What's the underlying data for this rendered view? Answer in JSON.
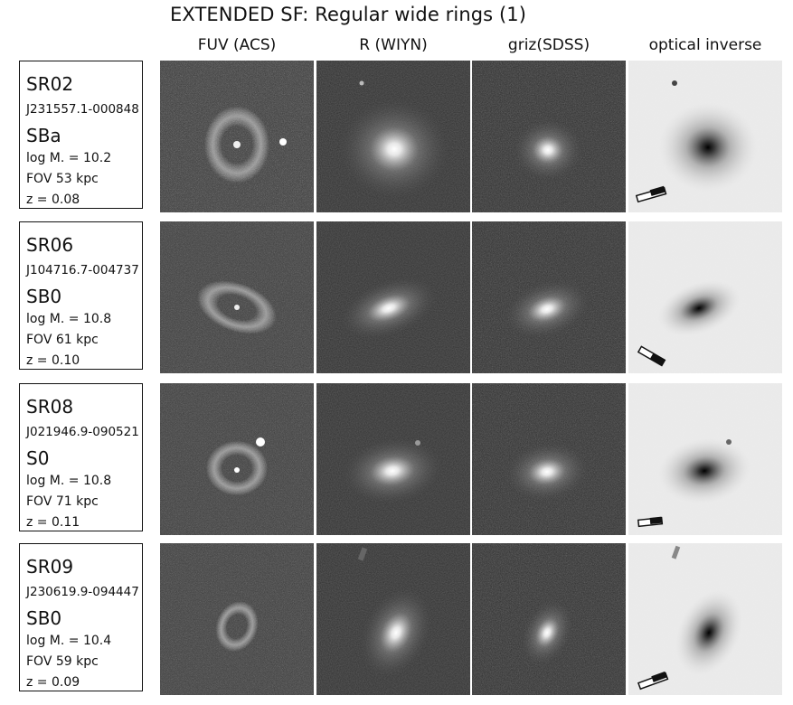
{
  "figure": {
    "title": "EXTENDED SF: Regular wide rings (1)",
    "columns": [
      "FUV (ACS)",
      "R (WIYN)",
      "griz(SDSS)",
      "optical inverse"
    ]
  },
  "rows": [
    {
      "name": "SR02",
      "id": "J231557.1-000848",
      "type": "SBa",
      "logm": "log M. = 10.2",
      "fov": "FOV 53 kpc",
      "z": "z = 0.08"
    },
    {
      "name": "SR06",
      "id": "J104716.7-004737",
      "type": "SB0",
      "logm": "log M. = 10.8",
      "fov": "FOV 61 kpc",
      "z": "z = 0.10"
    },
    {
      "name": "SR08",
      "id": "J021946.9-090521",
      "type": "S0",
      "logm": "log M. = 10.8",
      "fov": "FOV 71 kpc",
      "z": "z = 0.11"
    },
    {
      "name": "SR09",
      "id": "J230619.9-094447",
      "type": "SB0",
      "logm": "log M. = 10.4",
      "fov": "FOV 59 kpc",
      "z": "z = 0.09"
    }
  ],
  "colors": {
    "dark_bg": "#3a3a3a",
    "inverse_bg": "#ececec",
    "frame": "#111111"
  }
}
